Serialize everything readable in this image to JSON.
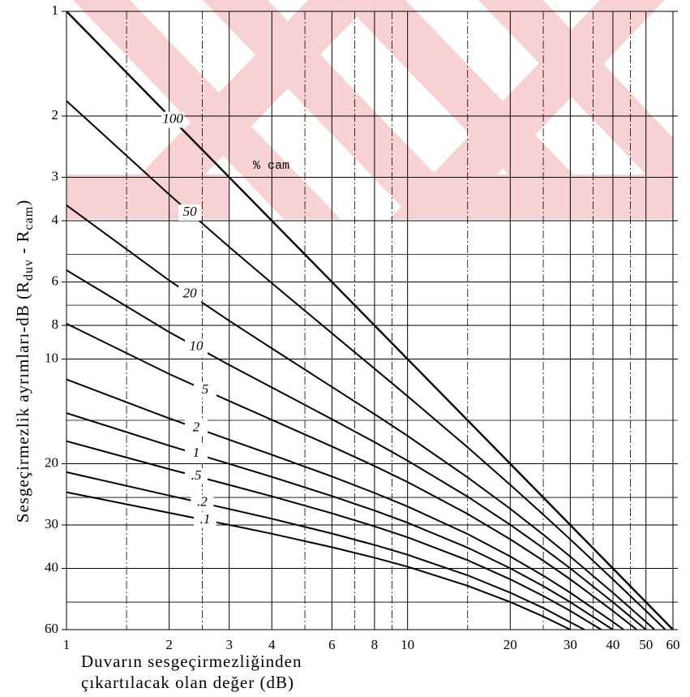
{
  "chart_data": {
    "type": "line",
    "annotation": "% cam",
    "xlabel_lines": [
      "Duvarın sesgeçirmezliğinden",
      "çıkartılacak olan değer (dB)"
    ],
    "ylabel_parts": [
      "Sesgeçirmezlik ayrımları-dB (R",
      "duv",
      " - R",
      "cam",
      ")"
    ],
    "xscale": "log",
    "yscale": "log",
    "y_inverted": true,
    "grid": true,
    "xlim": [
      1,
      60
    ],
    "ylim": [
      1,
      60
    ],
    "xticks": [
      1,
      2,
      3,
      4,
      6,
      8,
      10,
      20,
      30,
      40,
      50,
      60
    ],
    "yticks": [
      1,
      2,
      3,
      4,
      6,
      8,
      10,
      20,
      30,
      40,
      60
    ],
    "xminor": [
      1.5,
      2.5,
      5,
      7,
      9,
      15,
      25,
      35,
      45
    ],
    "yminor": [
      5,
      7,
      15,
      25,
      50
    ],
    "series": [
      {
        "name": "100",
        "color": "#000000",
        "x": [
          1,
          60
        ],
        "values": [
          1,
          60
        ]
      },
      {
        "name": "50",
        "color": "#000000",
        "x": [
          1,
          2,
          3,
          4,
          6,
          8,
          10,
          15,
          20,
          25,
          30,
          40,
          50,
          56.99
        ],
        "values": [
          1.81,
          3.36,
          4.76,
          6.05,
          8.43,
          10.65,
          12.79,
          17.94,
          22.99,
          28.0,
          33.01,
          43.01,
          53.01,
          60
        ]
      },
      {
        "name": "20",
        "color": "#000000",
        "x": [
          1,
          2,
          3,
          4,
          6,
          8,
          10,
          15,
          20,
          25,
          30,
          40,
          50,
          53.01
        ],
        "values": [
          3.61,
          5.94,
          7.76,
          9.32,
          12.02,
          14.4,
          16.63,
          21.88,
          26.95,
          31.98,
          36.99,
          46.99,
          56.99,
          60
        ]
      },
      {
        "name": "10",
        "color": "#000000",
        "x": [
          1,
          2,
          3,
          4,
          6,
          8,
          10,
          15,
          20,
          25,
          30,
          40,
          50
        ],
        "values": [
          5.55,
          8.36,
          10.4,
          12.07,
          14.89,
          17.33,
          19.59,
          24.87,
          29.96,
          34.99,
          40.0,
          50.0,
          60
        ]
      },
      {
        "name": "5",
        "color": "#000000",
        "x": [
          1,
          2,
          3,
          4,
          6,
          8,
          10,
          15,
          20,
          25,
          30,
          40,
          46.99
        ],
        "values": [
          7.91,
          11.04,
          13.2,
          14.95,
          17.83,
          20.3,
          22.58,
          27.88,
          32.97,
          38.0,
          43.01,
          53.01,
          60
        ]
      },
      {
        "name": "2",
        "color": "#000000",
        "x": [
          1,
          2,
          3,
          4,
          6,
          8,
          10,
          15,
          20,
          25,
          30,
          40,
          43.01
        ],
        "values": [
          11.44,
          14.81,
          17.06,
          18.84,
          21.76,
          24.26,
          26.54,
          31.85,
          36.95,
          41.98,
          46.99,
          56.99,
          60
        ]
      },
      {
        "name": "1",
        "color": "#000000",
        "x": [
          1,
          2,
          3,
          4,
          6,
          8,
          10,
          15,
          20,
          25,
          30,
          40
        ],
        "values": [
          14.3,
          17.74,
          20.02,
          21.82,
          24.76,
          27.26,
          29.55,
          34.86,
          39.96,
          44.99,
          50.0,
          60.0
        ]
      },
      {
        "name": ".5",
        "color": "#000000",
        "x": [
          1,
          2,
          3,
          4,
          6,
          8,
          10,
          15,
          20,
          25,
          30,
          36.99
        ],
        "values": [
          17.22,
          20.72,
          23.01,
          24.82,
          27.76,
          30.27,
          32.56,
          37.87,
          42.97,
          48.0,
          53.01,
          60
        ]
      },
      {
        "name": ".2",
        "color": "#000000",
        "x": [
          1,
          2,
          3,
          4,
          6,
          8,
          10,
          15,
          20,
          25,
          33.01
        ],
        "values": [
          21.15,
          24.68,
          26.98,
          28.79,
          31.74,
          34.24,
          36.53,
          41.85,
          46.95,
          51.98,
          60
        ]
      },
      {
        "name": ".1",
        "color": "#000000",
        "x": [
          1,
          2,
          3,
          4,
          6,
          8,
          10,
          15,
          20,
          25,
          30
        ],
        "values": [
          24.15,
          27.68,
          29.98,
          31.8,
          34.75,
          37.25,
          39.54,
          44.86,
          49.96,
          54.99,
          60.0
        ]
      }
    ]
  }
}
